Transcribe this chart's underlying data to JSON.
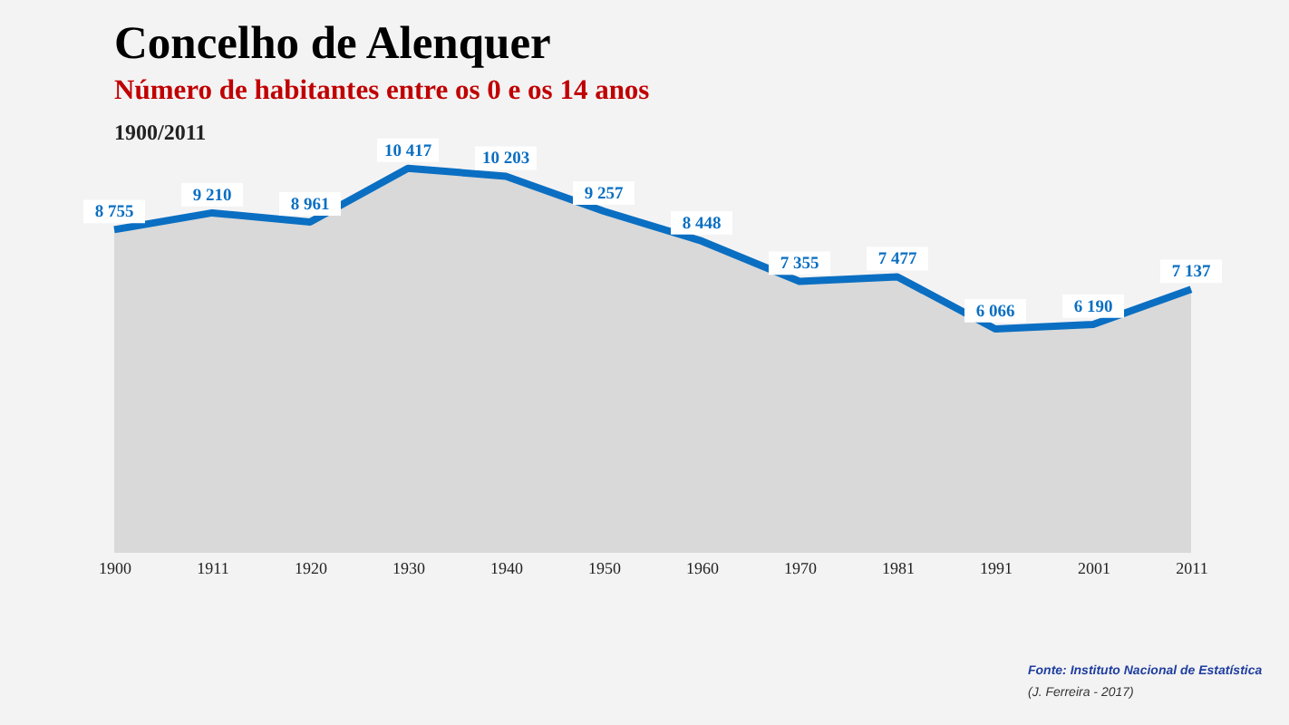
{
  "chart_data": {
    "type": "area",
    "title": "Concelho de Alenquer",
    "subtitle": "Número de habitantes entre os 0 e os 14 anos",
    "annotations": [
      "1900/2011",
      "Fonte: Instituto Nacional de Estatística",
      "(J. Ferreira - 2017)"
    ],
    "categories": [
      "1900",
      "1911",
      "1920",
      "1930",
      "1940",
      "1950",
      "1960",
      "1970",
      "1981",
      "1991",
      "2001",
      "2011"
    ],
    "series": [
      {
        "color": "#0a6fc2",
        "values": [
          8755,
          9210,
          8961,
          10417,
          10203,
          9257,
          8448,
          7355,
          7477,
          6066,
          6190,
          7137
        ],
        "value_labels": [
          "8 755",
          "9 210",
          "8 961",
          "10 417",
          "10 203",
          "9 257",
          "8 448",
          "7 355",
          "7 477",
          "6 066",
          "6 190",
          "7 137"
        ]
      }
    ],
    "tick_labels": "x"
  }
}
